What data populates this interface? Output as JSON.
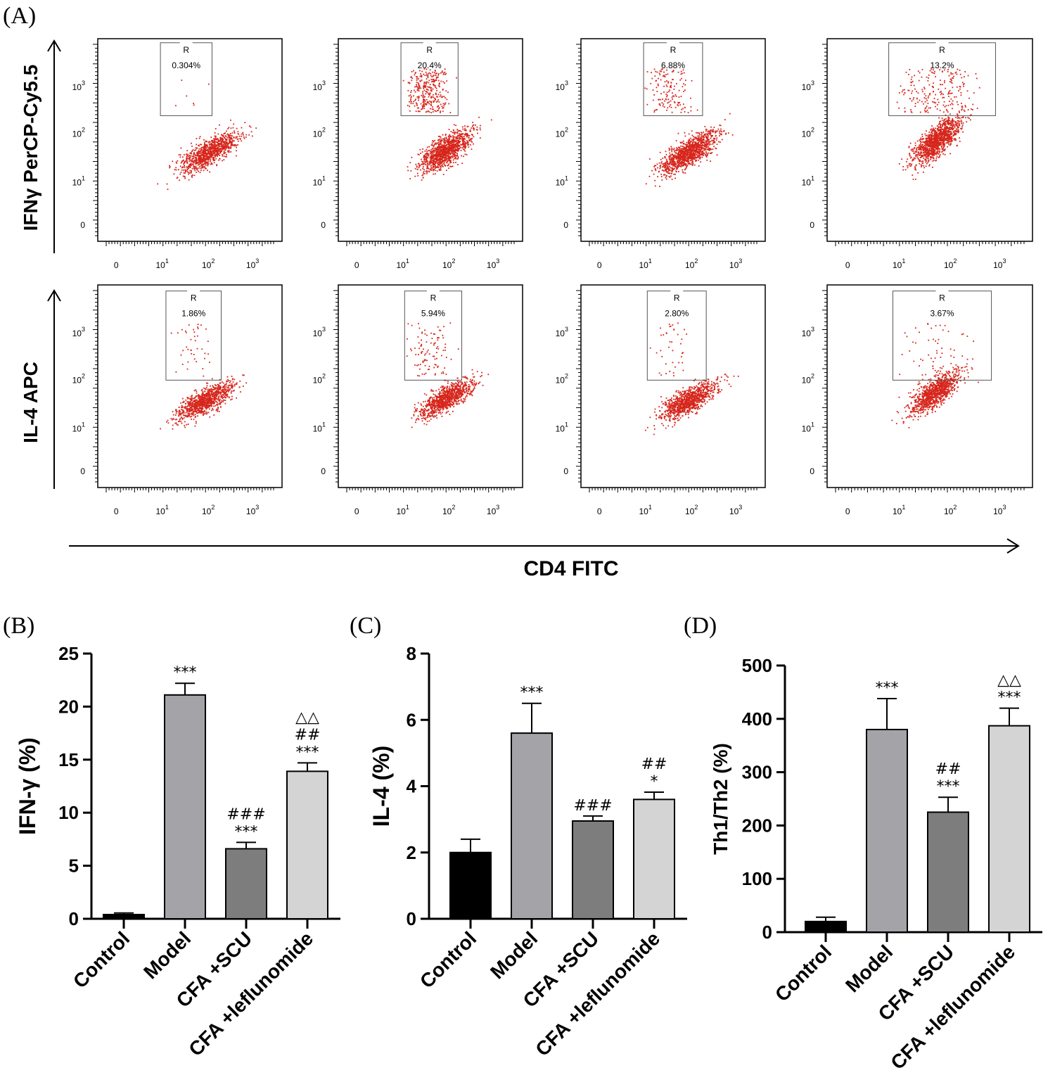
{
  "panel_labels": {
    "a": "(A)",
    "b": "(B)",
    "c": "(C)",
    "d": "(D)"
  },
  "flow": {
    "row_ylabels": [
      "IFNγ PerCP-Cy5.5",
      "IL-4 APC"
    ],
    "xlabel": "CD4 FITC",
    "x_ticks": [
      {
        "base": "0",
        "exp": ""
      },
      {
        "base": "10",
        "exp": "1"
      },
      {
        "base": "10",
        "exp": "2"
      },
      {
        "base": "10",
        "exp": "3"
      }
    ],
    "y_ticks": [
      {
        "base": "0",
        "exp": ""
      },
      {
        "base": "10",
        "exp": "1"
      },
      {
        "base": "10",
        "exp": "2"
      },
      {
        "base": "10",
        "exp": "3"
      }
    ],
    "gate_name": "R",
    "percentages": [
      [
        "0.304%",
        "20.4%",
        "6.88%",
        "13.2%"
      ],
      [
        "1.86%",
        "5.94%",
        "2.80%",
        "3.67%"
      ]
    ]
  },
  "colors": {
    "dots": "#d6261c",
    "control": "#000000",
    "model": "#a3a3a8",
    "scu": "#7d7d7d",
    "leflunomide": "#d4d4d4"
  },
  "chart_data": [
    {
      "type": "bar",
      "panel": "(B)",
      "categories": [
        "Control",
        "Model",
        "CFA +SCU",
        "CFA +leflunomide"
      ],
      "values": [
        0.4,
        21.1,
        6.6,
        13.9
      ],
      "errors": [
        0.15,
        1.1,
        0.6,
        0.8
      ],
      "ylabel": "IFN-γ (%)",
      "ylim": [
        0,
        25
      ],
      "yticks": [
        0,
        5,
        10,
        15,
        20,
        25
      ],
      "annotations": [
        [],
        [
          "***"
        ],
        [
          "###",
          "***"
        ],
        [
          "△△",
          "##",
          "***"
        ]
      ]
    },
    {
      "type": "bar",
      "panel": "(C)",
      "categories": [
        "Control",
        "Model",
        "CFA +SCU",
        "CFA +leflunomide"
      ],
      "values": [
        2.0,
        5.6,
        2.95,
        3.6
      ],
      "errors": [
        0.4,
        0.9,
        0.15,
        0.22
      ],
      "ylabel": "IL-4 (%)",
      "ylim": [
        0,
        8
      ],
      "yticks": [
        0,
        2,
        4,
        6,
        8
      ],
      "annotations": [
        [],
        [
          "***"
        ],
        [
          "###"
        ],
        [
          "##",
          "*"
        ]
      ]
    },
    {
      "type": "bar",
      "panel": "(D)",
      "categories": [
        "Control",
        "Model",
        "CFA +SCU",
        "CFA +leflunomide"
      ],
      "values": [
        20,
        380,
        225,
        387
      ],
      "errors": [
        8,
        58,
        28,
        33
      ],
      "ylabel": "Th1/Th2 (%)",
      "ylim": [
        0,
        500
      ],
      "yticks": [
        0,
        100,
        200,
        300,
        400,
        500
      ],
      "annotations": [
        [],
        [
          "***"
        ],
        [
          "##",
          "***"
        ],
        [
          "△△",
          "***"
        ]
      ]
    }
  ]
}
